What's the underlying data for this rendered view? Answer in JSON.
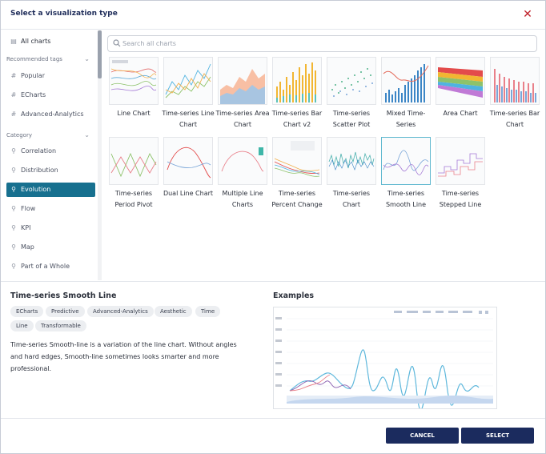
{
  "dialog": {
    "title": "Select a visualization type"
  },
  "sidebar": {
    "all_charts": "All charts",
    "recommended_heading": "Recommended tags",
    "tags": [
      {
        "label": "Popular",
        "icon": "hash-icon"
      },
      {
        "label": "ECharts",
        "icon": "hash-icon"
      },
      {
        "label": "Advanced-Analytics",
        "icon": "hash-icon"
      }
    ],
    "category_heading": "Category",
    "categories": [
      {
        "label": "Correlation",
        "icon": "category-icon"
      },
      {
        "label": "Distribution",
        "icon": "category-icon"
      },
      {
        "label": "Evolution",
        "icon": "category-icon",
        "active": true
      },
      {
        "label": "Flow",
        "icon": "category-icon"
      },
      {
        "label": "KPI",
        "icon": "category-icon"
      },
      {
        "label": "Map",
        "icon": "category-icon"
      },
      {
        "label": "Part of a Whole",
        "icon": "category-icon"
      }
    ]
  },
  "search": {
    "placeholder": "Search all charts",
    "value": ""
  },
  "charts": [
    {
      "label": "Line Chart"
    },
    {
      "label": "Time-series Line Chart"
    },
    {
      "label": "Time-series Area Chart"
    },
    {
      "label": "Time-series Bar Chart v2"
    },
    {
      "label": "Time-series Scatter Plot"
    },
    {
      "label": "Mixed Time-Series"
    },
    {
      "label": "Area Chart"
    },
    {
      "label": "Time-series Bar Chart"
    },
    {
      "label": "Time-series Period Pivot"
    },
    {
      "label": "Dual Line Chart"
    },
    {
      "label": "Multiple Line Charts"
    },
    {
      "label": "Time-series Percent Change"
    },
    {
      "label": "Time-series Chart"
    },
    {
      "label": "Time-series Smooth Line",
      "selected": true
    },
    {
      "label": "Time-series Stepped Line"
    }
  ],
  "details": {
    "title": "Time-series Smooth Line",
    "tags": [
      "ECharts",
      "Predictive",
      "Advanced-Analytics",
      "Aesthetic",
      "Time",
      "Line",
      "Transformable"
    ],
    "description": "Time-series Smooth-line is a variation of the line chart. Without angles and hard edges, Smooth-line sometimes looks smarter and more professional.",
    "examples_title": "Examples"
  },
  "buttons": {
    "cancel": "CANCEL",
    "select": "SELECT"
  },
  "colors": {
    "accent": "#17708f",
    "primary_button": "#1b2b5e",
    "close": "#c0202a"
  }
}
